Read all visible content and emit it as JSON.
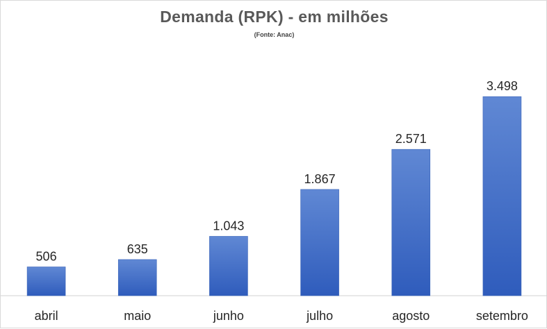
{
  "chart_data": {
    "type": "bar",
    "title": "Demanda (RPK) - em milhões",
    "subtitle": "(Fonte: Anac)",
    "categories": [
      "abril",
      "maio",
      "junho",
      "julho",
      "agosto",
      "setembro"
    ],
    "values": [
      506,
      635,
      1043,
      1867,
      2571,
      3498
    ],
    "value_labels": [
      "506",
      "635",
      "1.043",
      "1.867",
      "2.571",
      "3.498"
    ],
    "xlabel": "",
    "ylabel": "",
    "ylim": [
      0,
      4000
    ],
    "grid": false,
    "legend": "none",
    "bar_color_top": "#6088d4",
    "bar_color_bottom": "#2f5cbc"
  }
}
